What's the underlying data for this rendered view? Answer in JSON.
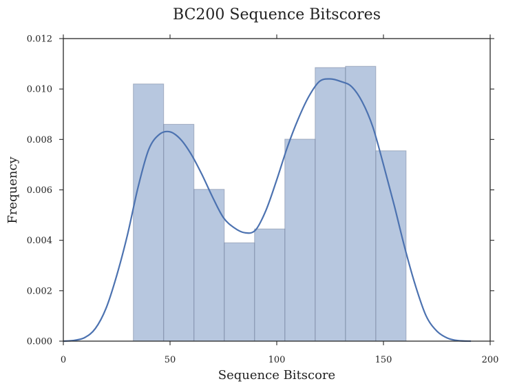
{
  "chart_data": {
    "type": "bar",
    "title": "BC200 Sequence Bitscores",
    "xlabel": "Sequence Bitscore",
    "ylabel": "Frequency",
    "xlim": [
      0,
      200
    ],
    "ylim": [
      0,
      0.012
    ],
    "x_ticks": [
      0,
      50,
      100,
      150,
      200
    ],
    "y_ticks": [
      0.0,
      0.002,
      0.004,
      0.006,
      0.008,
      0.01,
      0.012
    ],
    "x_tick_labels": [
      "0",
      "50",
      "100",
      "150",
      "200"
    ],
    "y_tick_labels": [
      "0.000",
      "0.002",
      "0.004",
      "0.006",
      "0.008",
      "0.010",
      "0.012"
    ],
    "grid": false,
    "histogram": {
      "bin_edges": [
        32.8,
        47.0,
        61.2,
        75.4,
        89.6,
        103.8,
        118.0,
        132.2,
        146.4,
        160.6
      ],
      "values": [
        0.0102,
        0.0086,
        0.00602,
        0.0039,
        0.00445,
        0.00801,
        0.01085,
        0.0109,
        0.00755
      ],
      "color": "#4c72b0",
      "opacity": 0.4
    },
    "kde": {
      "color": "#4c72b0",
      "x": [
        0,
        5,
        10,
        15,
        20,
        25,
        30,
        35,
        40,
        45,
        50,
        55,
        60,
        65,
        70,
        75,
        80,
        85,
        90,
        95,
        100,
        105,
        110,
        115,
        120,
        125,
        130,
        135,
        140,
        145,
        150,
        155,
        160,
        165,
        170,
        175,
        180,
        185,
        191
      ],
      "y": [
        0.0,
        3e-05,
        0.00014,
        0.0005,
        0.0013,
        0.0026,
        0.0042,
        0.0061,
        0.0076,
        0.0082,
        0.0083,
        0.008,
        0.0074,
        0.0066,
        0.0057,
        0.0049,
        0.0045,
        0.0043,
        0.0044,
        0.0052,
        0.0064,
        0.0077,
        0.0088,
        0.0097,
        0.0103,
        0.0104,
        0.0103,
        0.0101,
        0.0095,
        0.0085,
        0.007,
        0.0054,
        0.0037,
        0.0022,
        0.001,
        0.0004,
        0.00012,
        2e-05,
        0.0
      ]
    }
  }
}
